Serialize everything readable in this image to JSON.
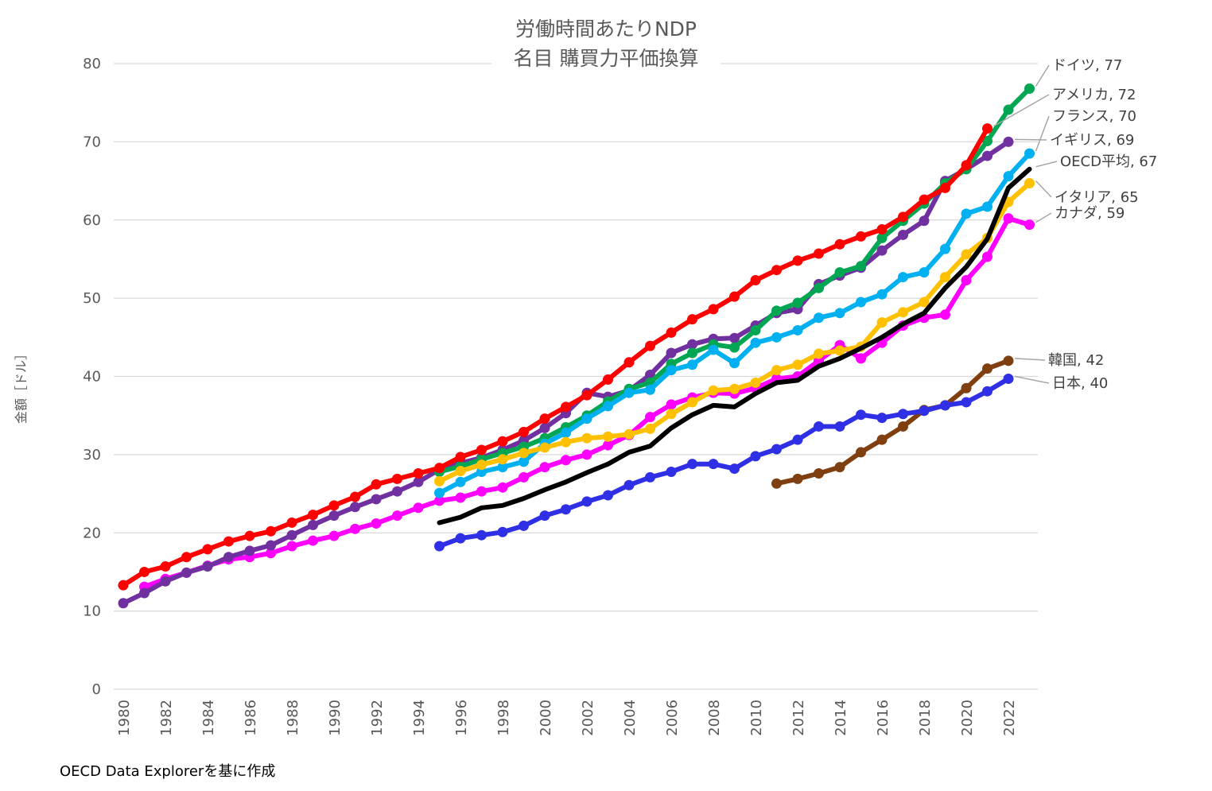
{
  "chart_data": {
    "type": "line",
    "title": "労働時間あたりNDP",
    "subtitle": "名目 購買力平価換算",
    "xlabel": "",
    "ylabel": "金額［ドル］",
    "ylim": [
      0,
      80
    ],
    "yticks": [
      0,
      10,
      20,
      30,
      40,
      50,
      60,
      70,
      80
    ],
    "xlim": [
      1980,
      2023
    ],
    "xticks": [
      "1980",
      "1982",
      "1984",
      "1986",
      "1988",
      "1990",
      "1992",
      "1994",
      "1996",
      "1998",
      "2000",
      "2002",
      "2004",
      "2006",
      "2008",
      "2010",
      "2012",
      "2014",
      "2016",
      "2018",
      "2020",
      "2022"
    ],
    "grid": "horizontal",
    "legend": "end-of-line labels",
    "series": [
      {
        "name": "カナダ",
        "label": "カナダ, 59",
        "color": "#ff00ff",
        "markers": true,
        "x": [
          1981,
          1982,
          1983,
          1984,
          1985,
          1986,
          1987,
          1988,
          1989,
          1990,
          1991,
          1992,
          1993,
          1994,
          1995,
          1996,
          1997,
          1998,
          1999,
          2000,
          2001,
          2002,
          2003,
          2004,
          2005,
          2006,
          2007,
          2008,
          2009,
          2010,
          2011,
          2012,
          2013,
          2014,
          2015,
          2016,
          2017,
          2018,
          2019,
          2020,
          2021,
          2022,
          2023
        ],
        "y": [
          13.1,
          14.1,
          14.9,
          15.8,
          16.6,
          16.9,
          17.4,
          18.3,
          19.0,
          19.6,
          20.5,
          21.2,
          22.2,
          23.2,
          24.1,
          24.5,
          25.3,
          25.8,
          27.1,
          28.4,
          29.3,
          30.0,
          31.2,
          32.5,
          34.8,
          36.4,
          37.3,
          37.9,
          37.8,
          38.5,
          39.7,
          40.0,
          42.0,
          44.0,
          42.3,
          44.3,
          46.5,
          47.5,
          47.9,
          52.3,
          55.3,
          60.2,
          59.4
        ]
      },
      {
        "name": "イギリス",
        "label": "イギリス, 69",
        "color": "#7030a0",
        "markers": true,
        "x": [
          1980,
          1981,
          1982,
          1983,
          1984,
          1985,
          1986,
          1987,
          1988,
          1989,
          1990,
          1991,
          1992,
          1993,
          1994,
          1995,
          1996,
          1997,
          1998,
          1999,
          2000,
          2001,
          2002,
          2003,
          2004,
          2005,
          2006,
          2007,
          2008,
          2009,
          2010,
          2011,
          2012,
          2013,
          2014,
          2015,
          2016,
          2017,
          2018,
          2019,
          2020,
          2021,
          2022
        ],
        "y": [
          11.0,
          12.3,
          13.8,
          14.9,
          15.7,
          16.9,
          17.7,
          18.4,
          19.7,
          21.0,
          22.2,
          23.3,
          24.3,
          25.3,
          26.5,
          28.1,
          28.9,
          29.6,
          30.6,
          31.8,
          33.4,
          35.3,
          37.9,
          37.4,
          38.2,
          40.2,
          43.0,
          44.1,
          44.8,
          44.9,
          46.5,
          48.1,
          48.6,
          51.8,
          52.9,
          53.9,
          56.1,
          58.1,
          59.9,
          65.0,
          66.5,
          68.2,
          70.0
        ]
      },
      {
        "name": "ドイツ",
        "label": "ドイツ, 77",
        "color": "#00a651",
        "markers": true,
        "x": [
          1995,
          1996,
          1997,
          1998,
          1999,
          2000,
          2001,
          2002,
          2003,
          2004,
          2005,
          2006,
          2007,
          2008,
          2009,
          2010,
          2011,
          2012,
          2013,
          2014,
          2015,
          2016,
          2017,
          2018,
          2019,
          2020,
          2021,
          2022,
          2023
        ],
        "y": [
          27.8,
          28.5,
          29.4,
          30.2,
          31.0,
          32.1,
          33.5,
          35.0,
          36.8,
          38.4,
          39.2,
          41.6,
          43.0,
          44.1,
          43.7,
          45.9,
          48.4,
          49.4,
          51.3,
          53.3,
          54.1,
          57.7,
          59.9,
          62.1,
          64.7,
          66.5,
          70.1,
          74.1,
          76.8
        ]
      },
      {
        "name": "フランス",
        "label": "フランス, 70",
        "color": "#00b0f0",
        "markers": true,
        "x": [
          1995,
          1996,
          1997,
          1998,
          1999,
          2000,
          2001,
          2002,
          2003,
          2004,
          2005,
          2006,
          2007,
          2008,
          2009,
          2010,
          2011,
          2012,
          2013,
          2014,
          2015,
          2016,
          2017,
          2018,
          2019,
          2020,
          2021,
          2022,
          2023
        ],
        "y": [
          25.1,
          26.5,
          27.8,
          28.4,
          29.1,
          31.4,
          32.8,
          34.6,
          36.2,
          37.9,
          38.3,
          40.8,
          41.5,
          43.4,
          41.7,
          44.3,
          45.0,
          45.9,
          47.5,
          48.1,
          49.5,
          50.5,
          52.7,
          53.3,
          56.3,
          60.8,
          61.7,
          65.6,
          68.5
        ]
      },
      {
        "name": "イタリア",
        "label": "イタリア, 65",
        "color": "#ffc000",
        "markers": true,
        "x": [
          1995,
          1996,
          1997,
          1998,
          1999,
          2000,
          2001,
          2002,
          2003,
          2004,
          2005,
          2006,
          2007,
          2008,
          2009,
          2010,
          2011,
          2012,
          2013,
          2014,
          2015,
          2016,
          2017,
          2018,
          2019,
          2020,
          2021,
          2022,
          2023
        ],
        "y": [
          26.6,
          27.9,
          28.7,
          29.4,
          30.2,
          30.9,
          31.6,
          32.1,
          32.3,
          32.6,
          33.3,
          35.2,
          36.7,
          38.2,
          38.4,
          39.2,
          40.8,
          41.5,
          42.9,
          43.3,
          43.8,
          46.9,
          48.2,
          49.5,
          52.7,
          55.6,
          57.7,
          62.3,
          64.7
        ]
      },
      {
        "name": "OECD平均",
        "label": "OECD平均, 67",
        "color": "#000000",
        "markers": false,
        "x": [
          1995,
          1996,
          1997,
          1998,
          1999,
          2000,
          2001,
          2002,
          2003,
          2004,
          2005,
          2006,
          2007,
          2008,
          2009,
          2010,
          2011,
          2012,
          2013,
          2014,
          2015,
          2016,
          2017,
          2018,
          2019,
          2020,
          2021,
          2022,
          2023
        ],
        "y": [
          21.3,
          22.0,
          23.2,
          23.5,
          24.4,
          25.5,
          26.5,
          27.7,
          28.8,
          30.3,
          31.1,
          33.4,
          35.1,
          36.3,
          36.1,
          37.8,
          39.2,
          39.5,
          41.3,
          42.3,
          43.6,
          45.0,
          46.7,
          48.1,
          51.3,
          54.0,
          57.6,
          64.1,
          66.5
        ]
      },
      {
        "name": "アメリカ",
        "label": "アメリカ, 72",
        "color": "#ff0000",
        "markers": true,
        "x": [
          1980,
          1981,
          1982,
          1983,
          1984,
          1985,
          1986,
          1987,
          1988,
          1989,
          1990,
          1991,
          1992,
          1993,
          1994,
          1995,
          1996,
          1997,
          1998,
          1999,
          2000,
          2001,
          2002,
          2003,
          2004,
          2005,
          2006,
          2007,
          2008,
          2009,
          2010,
          2011,
          2012,
          2013,
          2014,
          2015,
          2016,
          2017,
          2018,
          2019,
          2020,
          2021
        ],
        "y": [
          13.3,
          15.0,
          15.7,
          16.9,
          17.9,
          18.9,
          19.6,
          20.2,
          21.3,
          22.3,
          23.5,
          24.6,
          26.2,
          26.9,
          27.6,
          28.3,
          29.7,
          30.6,
          31.7,
          32.9,
          34.6,
          36.1,
          37.6,
          39.6,
          41.8,
          43.9,
          45.6,
          47.3,
          48.6,
          50.2,
          52.3,
          53.6,
          54.8,
          55.7,
          56.9,
          57.9,
          58.8,
          60.4,
          62.6,
          64.1,
          67.0,
          71.7
        ]
      },
      {
        "name": "韓国",
        "label": "韓国, 42",
        "color": "#7f3f10",
        "markers": true,
        "x": [
          2011,
          2012,
          2013,
          2014,
          2015,
          2016,
          2017,
          2018,
          2019,
          2020,
          2021,
          2022
        ],
        "y": [
          26.3,
          26.9,
          27.6,
          28.4,
          30.3,
          31.9,
          33.6,
          35.7,
          36.3,
          38.5,
          41.0,
          42.0
        ]
      },
      {
        "name": "日本",
        "label": "日本, 40",
        "color": "#2f2fe6",
        "markers": true,
        "x": [
          1995,
          1996,
          1997,
          1998,
          1999,
          2000,
          2001,
          2002,
          2003,
          2004,
          2005,
          2006,
          2007,
          2008,
          2009,
          2010,
          2011,
          2012,
          2013,
          2014,
          2015,
          2016,
          2017,
          2018,
          2019,
          2020,
          2021,
          2022
        ],
        "y": [
          18.3,
          19.3,
          19.7,
          20.1,
          20.9,
          22.2,
          23.0,
          24.0,
          24.8,
          26.1,
          27.1,
          27.8,
          28.8,
          28.8,
          28.2,
          29.8,
          30.7,
          31.9,
          33.6,
          33.6,
          35.1,
          34.7,
          35.2,
          35.6,
          36.3,
          36.7,
          38.1,
          39.7
        ]
      }
    ]
  },
  "source": "OECD Data Explorerを基に作成"
}
